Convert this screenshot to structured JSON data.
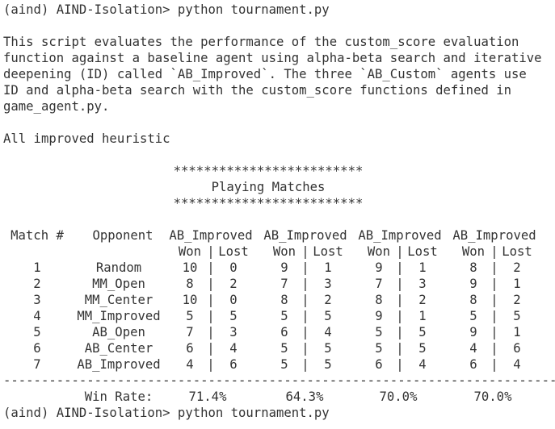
{
  "prompt": "(aind) AIND-Isolation> python tournament.py",
  "intro": [
    "This script evaluates the performance of the custom_score evaluation",
    "function against a baseline agent using alpha-beta search and iterative",
    "deepening (ID) called `AB_Improved`. The three `AB_Custom` agents use",
    "ID and alpha-beta search with the custom_score functions defined in",
    "game_agent.py."
  ],
  "note": "All improved heuristic",
  "banner": {
    "stars": "*************************",
    "title": "Playing Matches"
  },
  "table": {
    "match_header": "Match #",
    "opponent_header": "Opponent",
    "agents": [
      "AB_Improved",
      "AB_Improved",
      "AB_Improved",
      "AB_Improved"
    ],
    "won_label": "Won",
    "lost_label": "Lost",
    "separator": "|",
    "rows": [
      {
        "match": "1",
        "opponent": "Random",
        "results": [
          [
            "10",
            "0"
          ],
          [
            "9",
            "1"
          ],
          [
            "9",
            "1"
          ],
          [
            "8",
            "2"
          ]
        ]
      },
      {
        "match": "2",
        "opponent": "MM_Open",
        "results": [
          [
            "8",
            "2"
          ],
          [
            "7",
            "3"
          ],
          [
            "7",
            "3"
          ],
          [
            "9",
            "1"
          ]
        ]
      },
      {
        "match": "3",
        "opponent": "MM_Center",
        "results": [
          [
            "10",
            "0"
          ],
          [
            "8",
            "2"
          ],
          [
            "8",
            "2"
          ],
          [
            "8",
            "2"
          ]
        ]
      },
      {
        "match": "4",
        "opponent": "MM_Improved",
        "results": [
          [
            "5",
            "5"
          ],
          [
            "5",
            "5"
          ],
          [
            "9",
            "1"
          ],
          [
            "5",
            "5"
          ]
        ]
      },
      {
        "match": "5",
        "opponent": "AB_Open",
        "results": [
          [
            "7",
            "3"
          ],
          [
            "6",
            "4"
          ],
          [
            "5",
            "5"
          ],
          [
            "9",
            "1"
          ]
        ]
      },
      {
        "match": "6",
        "opponent": "AB_Center",
        "results": [
          [
            "6",
            "4"
          ],
          [
            "5",
            "5"
          ],
          [
            "5",
            "5"
          ],
          [
            "4",
            "6"
          ]
        ]
      },
      {
        "match": "7",
        "opponent": "AB_Improved",
        "results": [
          [
            "4",
            "6"
          ],
          [
            "5",
            "5"
          ],
          [
            "6",
            "4"
          ],
          [
            "6",
            "4"
          ]
        ]
      }
    ],
    "divider": "--------------------------------------------------------------------------",
    "win_rate_label": "Win Rate:",
    "win_rates": [
      "71.4%",
      "64.3%",
      "70.0%",
      "70.0%"
    ]
  },
  "prompt_end": "(aind) AIND-Isolation> python tournament.py"
}
